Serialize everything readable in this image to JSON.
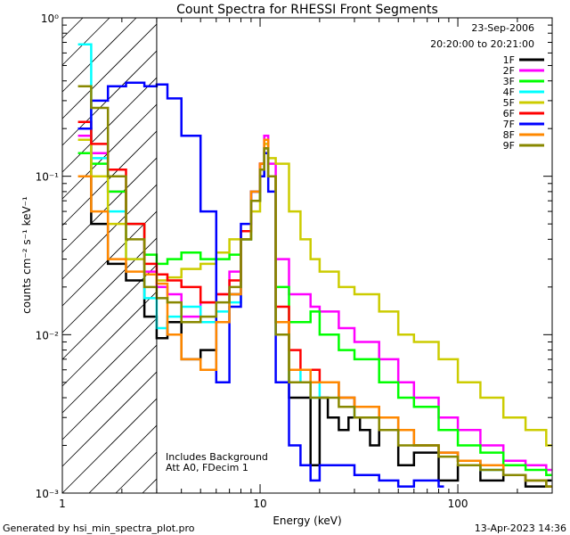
{
  "chart_data": {
    "type": "line",
    "title": "Count Spectra for RHESSI Front Segments",
    "xlabel": "Energy (keV)",
    "ylabel": "counts cm⁻² s⁻¹ keV⁻¹",
    "xscale": "log",
    "yscale": "log",
    "xlim": [
      1,
      300
    ],
    "ylim": [
      0.001,
      1
    ],
    "x_ticks": [
      {
        "value": 1,
        "label": "1"
      },
      {
        "value": 10,
        "label": "10"
      },
      {
        "value": 100,
        "label": "100"
      }
    ],
    "y_ticks": [
      {
        "value": 1,
        "label": "10⁰"
      },
      {
        "value": 0.1,
        "label": "10⁻¹"
      },
      {
        "value": 0.01,
        "label": "10⁻²"
      },
      {
        "value": 0.001,
        "label": "10⁻³"
      }
    ],
    "date": "23-Sep-2006",
    "time_range": "20:20:00 to 20:21:00",
    "annotations": [
      "Includes Background",
      "Att A0, FDecim 1"
    ],
    "hatched_region_max_keV": 3,
    "series": [
      {
        "name": "1F",
        "color": "#000000",
        "points": [
          [
            1.2,
            0.2
          ],
          [
            1.4,
            0.05
          ],
          [
            1.7,
            0.028
          ],
          [
            2.1,
            0.022
          ],
          [
            2.6,
            0.013
          ],
          [
            3.0,
            0.0095
          ],
          [
            3.4,
            0.012
          ],
          [
            4.0,
            0.007
          ],
          [
            5,
            0.008
          ],
          [
            6,
            0.012
          ],
          [
            7,
            0.018
          ],
          [
            8,
            0.04
          ],
          [
            9,
            0.07
          ],
          [
            10,
            0.12
          ],
          [
            10.5,
            0.15
          ],
          [
            11,
            0.1
          ],
          [
            12,
            0.012
          ],
          [
            14,
            0.004
          ],
          [
            16,
            0.004
          ],
          [
            18,
            0.0015
          ],
          [
            20,
            0.004
          ],
          [
            22,
            0.003
          ],
          [
            25,
            0.0025
          ],
          [
            28,
            0.003
          ],
          [
            32,
            0.0025
          ],
          [
            36,
            0.002
          ],
          [
            40,
            0.0025
          ],
          [
            50,
            0.0015
          ],
          [
            60,
            0.0018
          ],
          [
            80,
            0.0012
          ],
          [
            100,
            0.0015
          ],
          [
            130,
            0.0012
          ],
          [
            170,
            0.0013
          ],
          [
            220,
            0.0011
          ],
          [
            280,
            0.0012
          ]
        ]
      },
      {
        "name": "2F",
        "color": "#ff00ff",
        "points": [
          [
            1.2,
            0.18
          ],
          [
            1.4,
            0.14
          ],
          [
            1.7,
            0.08
          ],
          [
            2.1,
            0.05
          ],
          [
            2.6,
            0.025
          ],
          [
            3.0,
            0.02
          ],
          [
            3.4,
            0.018
          ],
          [
            4.0,
            0.013
          ],
          [
            5,
            0.016
          ],
          [
            6,
            0.018
          ],
          [
            7,
            0.025
          ],
          [
            8,
            0.045
          ],
          [
            9,
            0.08
          ],
          [
            10,
            0.12
          ],
          [
            10.5,
            0.18
          ],
          [
            11,
            0.12
          ],
          [
            12,
            0.03
          ],
          [
            14,
            0.018
          ],
          [
            16,
            0.018
          ],
          [
            18,
            0.015
          ],
          [
            20,
            0.014
          ],
          [
            25,
            0.011
          ],
          [
            30,
            0.009
          ],
          [
            40,
            0.007
          ],
          [
            50,
            0.005
          ],
          [
            60,
            0.004
          ],
          [
            80,
            0.003
          ],
          [
            100,
            0.0025
          ],
          [
            130,
            0.002
          ],
          [
            170,
            0.0016
          ],
          [
            220,
            0.0015
          ],
          [
            280,
            0.0014
          ]
        ]
      },
      {
        "name": "3F",
        "color": "#00ff00",
        "points": [
          [
            1.2,
            0.14
          ],
          [
            1.4,
            0.12
          ],
          [
            1.7,
            0.08
          ],
          [
            2.1,
            0.05
          ],
          [
            2.6,
            0.032
          ],
          [
            3.0,
            0.028
          ],
          [
            3.4,
            0.03
          ],
          [
            4.0,
            0.033
          ],
          [
            5,
            0.03
          ],
          [
            6,
            0.03
          ],
          [
            7,
            0.032
          ],
          [
            8,
            0.04
          ],
          [
            9,
            0.07
          ],
          [
            10,
            0.11
          ],
          [
            10.5,
            0.14
          ],
          [
            11,
            0.1
          ],
          [
            12,
            0.02
          ],
          [
            14,
            0.012
          ],
          [
            16,
            0.012
          ],
          [
            18,
            0.014
          ],
          [
            20,
            0.01
          ],
          [
            25,
            0.008
          ],
          [
            30,
            0.007
          ],
          [
            40,
            0.005
          ],
          [
            50,
            0.004
          ],
          [
            60,
            0.0035
          ],
          [
            80,
            0.0025
          ],
          [
            100,
            0.002
          ],
          [
            130,
            0.0018
          ],
          [
            170,
            0.0015
          ],
          [
            220,
            0.0014
          ],
          [
            280,
            0.0013
          ]
        ]
      },
      {
        "name": "4F",
        "color": "#00ffff",
        "points": [
          [
            1.2,
            0.68
          ],
          [
            1.4,
            0.13
          ],
          [
            1.7,
            0.06
          ],
          [
            2.1,
            0.03
          ],
          [
            2.6,
            0.017
          ],
          [
            3.0,
            0.011
          ],
          [
            3.4,
            0.013
          ],
          [
            4.0,
            0.015
          ],
          [
            5,
            0.012
          ],
          [
            6,
            0.014
          ],
          [
            7,
            0.016
          ],
          [
            8,
            0.04
          ],
          [
            9,
            0.08
          ],
          [
            10,
            0.1
          ],
          [
            10.5,
            0.14
          ],
          [
            11,
            0.1
          ],
          [
            12,
            0.01
          ],
          [
            14,
            0.005
          ],
          [
            16,
            0.006
          ],
          [
            18,
            0.004
          ],
          [
            20,
            0.005
          ],
          [
            25,
            0.004
          ],
          [
            30,
            0.003
          ],
          [
            40,
            0.003
          ],
          [
            50,
            0.0025
          ],
          [
            60,
            0.002
          ],
          [
            80,
            0.0018
          ],
          [
            100,
            0.0016
          ],
          [
            130,
            0.0014
          ],
          [
            170,
            0.0013
          ],
          [
            220,
            0.0012
          ],
          [
            280,
            0.0011
          ]
        ]
      },
      {
        "name": "5F",
        "color": "#cccc00",
        "points": [
          [
            1.2,
            0.17
          ],
          [
            1.4,
            0.1
          ],
          [
            1.7,
            0.05
          ],
          [
            2.1,
            0.03
          ],
          [
            2.6,
            0.024
          ],
          [
            3.0,
            0.022
          ],
          [
            3.4,
            0.023
          ],
          [
            4.0,
            0.026
          ],
          [
            5,
            0.028
          ],
          [
            6,
            0.033
          ],
          [
            7,
            0.04
          ],
          [
            8,
            0.045
          ],
          [
            9,
            0.06
          ],
          [
            10,
            0.1
          ],
          [
            10.5,
            0.16
          ],
          [
            11,
            0.13
          ],
          [
            12,
            0.12
          ],
          [
            14,
            0.06
          ],
          [
            16,
            0.04
          ],
          [
            18,
            0.03
          ],
          [
            20,
            0.025
          ],
          [
            25,
            0.02
          ],
          [
            30,
            0.018
          ],
          [
            40,
            0.014
          ],
          [
            50,
            0.01
          ],
          [
            60,
            0.009
          ],
          [
            80,
            0.007
          ],
          [
            100,
            0.005
          ],
          [
            130,
            0.004
          ],
          [
            170,
            0.003
          ],
          [
            220,
            0.0025
          ],
          [
            280,
            0.002
          ]
        ]
      },
      {
        "name": "6F",
        "color": "#ff0000",
        "points": [
          [
            1.2,
            0.22
          ],
          [
            1.4,
            0.16
          ],
          [
            1.7,
            0.11
          ],
          [
            2.1,
            0.05
          ],
          [
            2.6,
            0.028
          ],
          [
            3.0,
            0.024
          ],
          [
            3.4,
            0.022
          ],
          [
            4.0,
            0.02
          ],
          [
            5,
            0.016
          ],
          [
            6,
            0.018
          ],
          [
            7,
            0.022
          ],
          [
            8,
            0.045
          ],
          [
            9,
            0.08
          ],
          [
            10,
            0.12
          ],
          [
            10.5,
            0.17
          ],
          [
            11,
            0.1
          ],
          [
            12,
            0.015
          ],
          [
            14,
            0.008
          ],
          [
            16,
            0.006
          ],
          [
            18,
            0.006
          ],
          [
            20,
            0.005
          ],
          [
            25,
            0.004
          ],
          [
            30,
            0.0035
          ],
          [
            40,
            0.003
          ],
          [
            50,
            0.0025
          ],
          [
            60,
            0.002
          ],
          [
            80,
            0.0018
          ],
          [
            100,
            0.0016
          ],
          [
            130,
            0.0015
          ],
          [
            170,
            0.0013
          ],
          [
            220,
            0.0012
          ],
          [
            280,
            0.0011
          ]
        ]
      },
      {
        "name": "7F",
        "color": "#0000ff",
        "points": [
          [
            1.2,
            0.2
          ],
          [
            1.4,
            0.3
          ],
          [
            1.7,
            0.37
          ],
          [
            2.1,
            0.39
          ],
          [
            2.6,
            0.37
          ],
          [
            3.0,
            0.38
          ],
          [
            3.4,
            0.31
          ],
          [
            4.0,
            0.18
          ],
          [
            5,
            0.06
          ],
          [
            6,
            0.005
          ],
          [
            7,
            0.015
          ],
          [
            8,
            0.05
          ],
          [
            9,
            0.08
          ],
          [
            10,
            0.1
          ],
          [
            10.5,
            0.14
          ],
          [
            11,
            0.08
          ],
          [
            12,
            0.005
          ],
          [
            14,
            0.002
          ],
          [
            16,
            0.0015
          ],
          [
            18,
            0.0012
          ],
          [
            20,
            0.0015
          ],
          [
            25,
            0.0015
          ],
          [
            30,
            0.0013
          ],
          [
            40,
            0.0012
          ],
          [
            50,
            0.0011
          ],
          [
            60,
            0.0012
          ],
          [
            80,
            0.0011
          ]
        ]
      },
      {
        "name": "8F",
        "color": "#ff8800",
        "points": [
          [
            1.2,
            0.1
          ],
          [
            1.4,
            0.06
          ],
          [
            1.7,
            0.03
          ],
          [
            2.1,
            0.025
          ],
          [
            2.6,
            0.024
          ],
          [
            3.0,
            0.021
          ],
          [
            3.4,
            0.01
          ],
          [
            4.0,
            0.007
          ],
          [
            5,
            0.006
          ],
          [
            6,
            0.012
          ],
          [
            7,
            0.018
          ],
          [
            8,
            0.04
          ],
          [
            9,
            0.08
          ],
          [
            10,
            0.12
          ],
          [
            10.5,
            0.17
          ],
          [
            11,
            0.1
          ],
          [
            12,
            0.012
          ],
          [
            14,
            0.006
          ],
          [
            16,
            0.006
          ],
          [
            18,
            0.005
          ],
          [
            20,
            0.005
          ],
          [
            25,
            0.004
          ],
          [
            30,
            0.0035
          ],
          [
            40,
            0.003
          ],
          [
            50,
            0.0025
          ],
          [
            60,
            0.002
          ],
          [
            80,
            0.0018
          ],
          [
            100,
            0.0016
          ],
          [
            130,
            0.0015
          ],
          [
            170,
            0.0013
          ],
          [
            220,
            0.0012
          ],
          [
            280,
            0.0011
          ]
        ]
      },
      {
        "name": "9F",
        "color": "#888800",
        "points": [
          [
            1.2,
            0.37
          ],
          [
            1.4,
            0.27
          ],
          [
            1.7,
            0.1
          ],
          [
            2.1,
            0.04
          ],
          [
            2.6,
            0.02
          ],
          [
            3.0,
            0.017
          ],
          [
            3.4,
            0.016
          ],
          [
            4.0,
            0.012
          ],
          [
            5,
            0.013
          ],
          [
            6,
            0.016
          ],
          [
            7,
            0.02
          ],
          [
            8,
            0.04
          ],
          [
            9,
            0.07
          ],
          [
            10,
            0.11
          ],
          [
            10.5,
            0.15
          ],
          [
            11,
            0.1
          ],
          [
            12,
            0.01
          ],
          [
            14,
            0.005
          ],
          [
            16,
            0.005
          ],
          [
            18,
            0.004
          ],
          [
            20,
            0.004
          ],
          [
            25,
            0.0035
          ],
          [
            30,
            0.003
          ],
          [
            40,
            0.0025
          ],
          [
            50,
            0.002
          ],
          [
            60,
            0.002
          ],
          [
            80,
            0.0017
          ],
          [
            100,
            0.0015
          ],
          [
            130,
            0.0014
          ],
          [
            170,
            0.0013
          ],
          [
            220,
            0.0012
          ],
          [
            280,
            0.0011
          ]
        ]
      }
    ]
  },
  "footer": {
    "left": "Generated by hsi_min_spectra_plot.pro",
    "right": "13-Apr-2023 14:36"
  }
}
